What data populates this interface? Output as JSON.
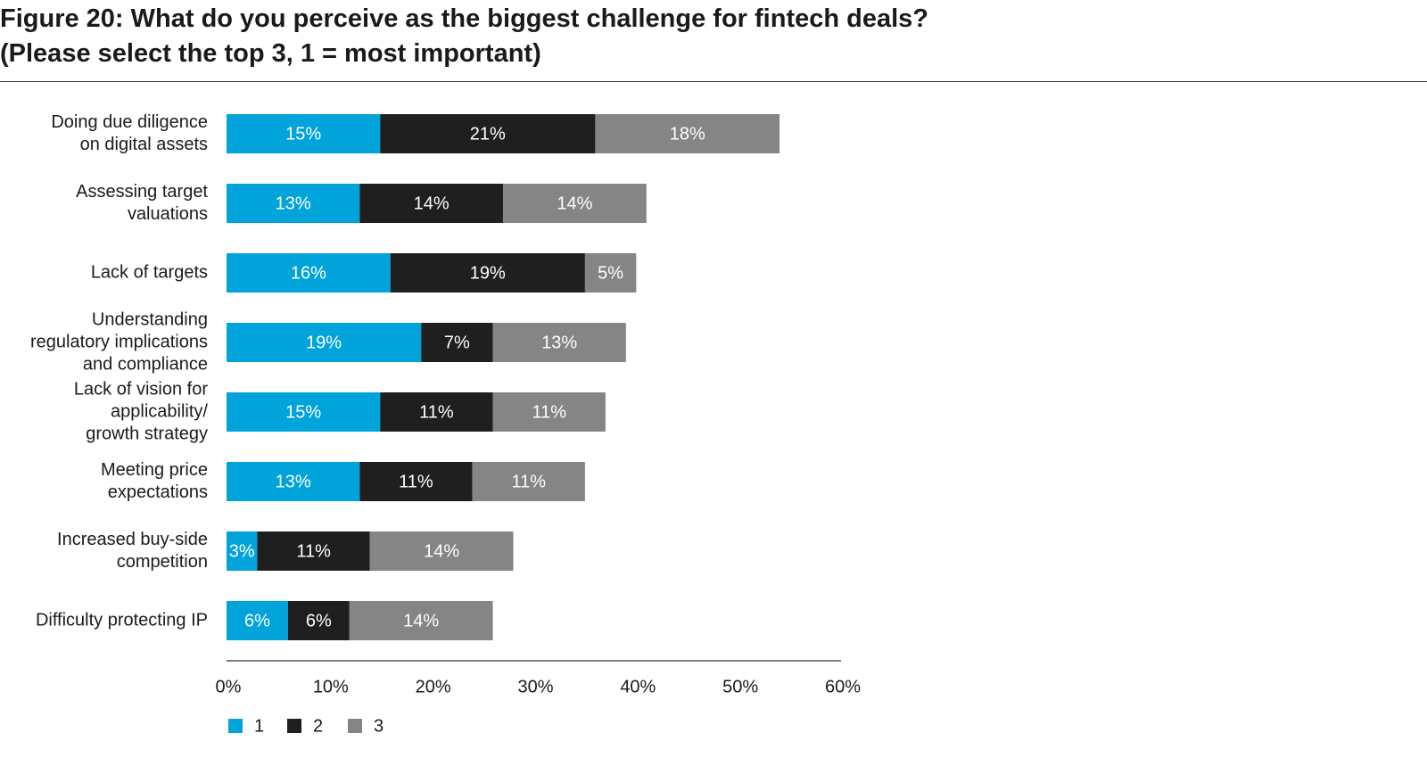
{
  "chart_data": {
    "type": "bar",
    "orientation": "horizontal",
    "stacked": true,
    "title": "Figure 20: What do you perceive as the biggest challenge for fintech deals? (Please select the top 3, 1 = most important)",
    "title_lines": [
      "Figure 20: What do you perceive as the biggest challenge for fintech deals?",
      "(Please select the top 3, 1 = most important)"
    ],
    "categories": [
      [
        "Doing due diligence",
        "on digital assets"
      ],
      [
        "Assessing target",
        "valuations"
      ],
      [
        "Lack of targets"
      ],
      [
        "Understanding",
        "regulatory implications",
        "and compliance"
      ],
      [
        "Lack of vision for",
        "applicability/",
        "growth strategy"
      ],
      [
        "Meeting price",
        "expectations"
      ],
      [
        "Increased buy-side",
        "competition"
      ],
      [
        "Difficulty protecting IP"
      ]
    ],
    "series": [
      {
        "name": "1",
        "color": "#00a3da",
        "values": [
          15,
          13,
          16,
          19,
          15,
          13,
          3,
          6
        ],
        "labels": [
          "15%",
          "13%",
          "16%",
          "19%",
          "15%",
          "13%",
          "3%",
          "6%"
        ]
      },
      {
        "name": "2",
        "color": "#1f1f1f",
        "values": [
          21,
          14,
          19,
          7,
          11,
          11,
          11,
          6
        ],
        "labels": [
          "21%",
          "14%",
          "19%",
          "7%",
          "11%",
          "11%",
          "11%",
          "6%"
        ]
      },
      {
        "name": "3",
        "color": "#858585",
        "values": [
          18,
          14,
          5,
          13,
          11,
          11,
          14,
          14
        ],
        "labels": [
          "18%",
          "14%",
          "5%",
          "13%",
          "11%",
          "11%",
          "14%",
          "14%"
        ]
      }
    ],
    "xlim": [
      0,
      60
    ],
    "xticks": [
      "0%",
      "10%",
      "20%",
      "30%",
      "40%",
      "50%",
      "60%"
    ],
    "grid": false,
    "legend_position": "bottom-left"
  }
}
